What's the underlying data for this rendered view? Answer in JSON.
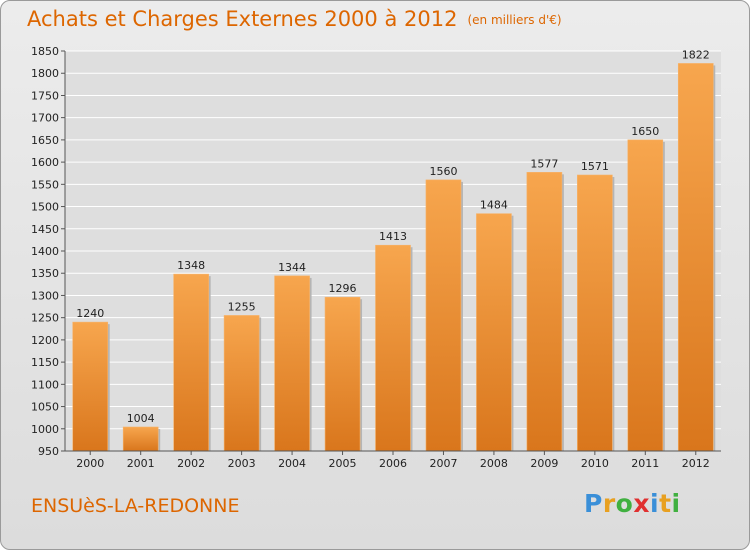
{
  "header": {
    "title": "Achats et Charges Externes 2000 à 2012",
    "subtitle": "(en milliers d'€)"
  },
  "footer": {
    "city": "ENSUèS-LA-REDONNE",
    "logo": "Proxiti",
    "logo_letters": [
      {
        "ch": "P",
        "color": "#3a8fd8"
      },
      {
        "ch": "r",
        "color": "#e8a020"
      },
      {
        "ch": "o",
        "color": "#40b040"
      },
      {
        "ch": "x",
        "color": "#e03030"
      },
      {
        "ch": "i",
        "color": "#3a8fd8"
      },
      {
        "ch": "t",
        "color": "#e8a020"
      },
      {
        "ch": "i",
        "color": "#40b040"
      }
    ]
  },
  "colors": {
    "accent": "#dd6600",
    "bar_light": "#f7a64e",
    "bar_dark": "#d9761c",
    "grid": "#ffffff",
    "plot_bg": "#dedede"
  },
  "chart_data": {
    "type": "bar",
    "title": "Achats et Charges Externes 2000 à 2012",
    "subtitle": "(en milliers d'€)",
    "categories": [
      "2000",
      "2001",
      "2002",
      "2003",
      "2004",
      "2005",
      "2006",
      "2007",
      "2008",
      "2009",
      "2010",
      "2011",
      "2012"
    ],
    "values": [
      1240,
      1004,
      1348,
      1255,
      1344,
      1296,
      1413,
      1560,
      1484,
      1577,
      1571,
      1650,
      1822
    ],
    "xlabel": "",
    "ylabel": "",
    "ylim": [
      950,
      1850
    ],
    "yticks": [
      950,
      1000,
      1050,
      1100,
      1150,
      1200,
      1250,
      1300,
      1350,
      1400,
      1450,
      1500,
      1550,
      1600,
      1650,
      1700,
      1750,
      1800,
      1850
    ],
    "grid": true,
    "legend": "none"
  }
}
